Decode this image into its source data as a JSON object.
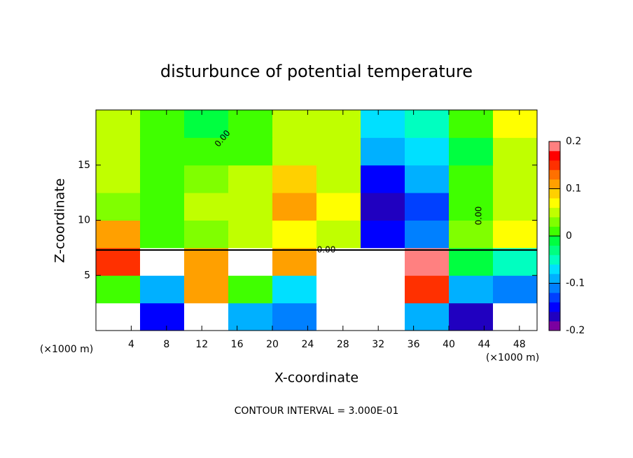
{
  "chart_data": {
    "type": "heatmap",
    "title": "disturbunce of potential temperature",
    "xlabel": "X-coordinate",
    "ylabel": "Z-coordinate",
    "x_unit": "(×1000 m)",
    "note": "CONTOUR INTERVAL = 3.000E-01",
    "contour_labels": [
      "0.00",
      "0.00",
      "0.00"
    ],
    "xlim": [
      0,
      50
    ],
    "xticks": [
      4,
      8,
      12,
      16,
      20,
      24,
      28,
      32,
      36,
      40,
      44,
      48
    ],
    "ylim": [
      0,
      20
    ],
    "yticks": [
      5,
      10,
      15
    ],
    "x": [
      2.5,
      7.5,
      12.5,
      17.5,
      22.5,
      27.5,
      32.5,
      37.5,
      42.5,
      47.5
    ],
    "y": [
      1.25,
      3.75,
      6.25,
      8.75,
      11.25,
      13.75,
      16.25,
      18.75
    ],
    "z": [
      [
        0.3,
        -0.15,
        0.3,
        -0.1,
        -0.12,
        0.3,
        0.3,
        -0.1,
        -0.18,
        0.3
      ],
      [
        0.02,
        -0.1,
        0.12,
        0.0,
        -0.08,
        0.3,
        0.3,
        0.15,
        -0.1,
        -0.12
      ],
      [
        0.15,
        0.3,
        0.1,
        0.3,
        0.12,
        0.3,
        0.3,
        0.18,
        -0.02,
        -0.05
      ],
      [
        0.1,
        0.02,
        0.03,
        0.05,
        0.06,
        0.04,
        -0.16,
        -0.12,
        0.03,
        0.06
      ],
      [
        0.03,
        0.01,
        0.04,
        0.05,
        0.1,
        0.06,
        -0.17,
        -0.14,
        0.02,
        0.05
      ],
      [
        0.04,
        0.02,
        0.03,
        0.05,
        0.08,
        0.05,
        -0.15,
        -0.1,
        0.0,
        0.05
      ],
      [
        0.04,
        0.02,
        0.01,
        0.02,
        0.05,
        0.04,
        -0.1,
        -0.07,
        -0.02,
        0.05
      ],
      [
        0.05,
        0.02,
        -0.01,
        0.01,
        0.04,
        0.05,
        -0.08,
        -0.06,
        0.02,
        0.07
      ]
    ],
    "colorbar": {
      "lim": [
        -0.2,
        0.2
      ],
      "ticks": [
        -0.2,
        -0.1,
        0,
        0.1,
        0.2
      ],
      "colors": [
        "#7b00a0",
        "#2000c0",
        "#0000ff",
        "#0040ff",
        "#0080ff",
        "#00b0ff",
        "#00e0ff",
        "#00ffc0",
        "#00ff80",
        "#00ff40",
        "#40ff00",
        "#80ff00",
        "#c0ff00",
        "#ffff00",
        "#ffd000",
        "#ffa000",
        "#ff7000",
        "#ff3000",
        "#ff0000",
        "#ff8080"
      ],
      "out_of_range_color": "#ffffff"
    }
  }
}
